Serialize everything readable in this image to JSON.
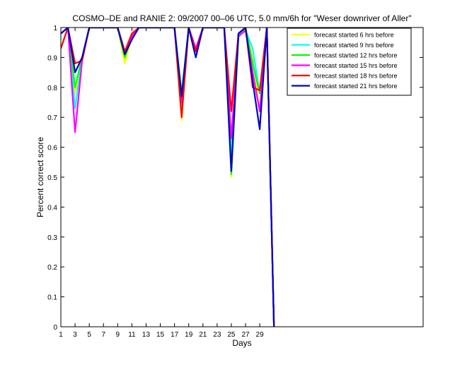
{
  "chart_data": {
    "type": "line",
    "title": "COSMO–DE and RANIE 2: 09/2007 00–06 UTC, 5.0 mm/6h for \"Weser downriver of Aller\"",
    "xlabel": "Days",
    "ylabel": "Percent correct score",
    "xlim": [
      1,
      52
    ],
    "ylim": [
      0,
      1
    ],
    "xticks": [
      1,
      3,
      5,
      7,
      9,
      11,
      13,
      15,
      17,
      19,
      21,
      23,
      25,
      27,
      29
    ],
    "yticks": [
      0,
      0.1,
      0.2,
      0.3,
      0.4,
      0.5,
      0.6,
      0.7,
      0.8,
      0.9,
      1
    ],
    "ytick_labels": [
      "0",
      "0.1",
      "0.2",
      "0.3",
      "0.4",
      "0.5",
      "0.6",
      "0.7",
      "0.8",
      "0.9",
      "1"
    ],
    "grid": false,
    "legend_position": "top-right",
    "x": [
      1,
      2,
      3,
      4,
      5,
      6,
      7,
      8,
      9,
      10,
      11,
      12,
      13,
      14,
      15,
      16,
      17,
      18,
      19,
      20,
      21,
      22,
      23,
      24,
      25,
      26,
      27,
      28,
      29,
      30,
      31
    ],
    "series": [
      {
        "name": "forecast started 6 hrs before",
        "color": "#ffff00",
        "values": [
          0.93,
          1,
          0.78,
          0.9,
          1,
          1,
          1,
          1,
          1,
          0.88,
          0.97,
          1,
          1,
          1,
          1,
          1,
          1,
          0.69,
          1,
          0.92,
          1,
          1,
          1,
          1,
          0.5,
          0.97,
          1,
          0.9,
          0.72,
          1,
          0
        ]
      },
      {
        "name": "forecast started 9 hrs before",
        "color": "#00ffff",
        "values": [
          0.98,
          1,
          0.73,
          0.9,
          1,
          1,
          1,
          1,
          1,
          0.91,
          0.97,
          1,
          1,
          1,
          1,
          1,
          1,
          0.74,
          1,
          0.92,
          1,
          1,
          1,
          1,
          0.58,
          0.97,
          0.99,
          0.93,
          0.78,
          1,
          0
        ]
      },
      {
        "name": "forecast started 12 hrs before",
        "color": "#00ff00",
        "values": [
          0.98,
          1,
          0.8,
          0.9,
          1,
          1,
          1,
          1,
          1,
          0.9,
          0.97,
          1,
          1,
          1,
          1,
          1,
          1,
          0.78,
          1,
          0.92,
          1,
          1,
          1,
          1,
          0.51,
          0.97,
          1,
          0.88,
          0.78,
          1,
          0
        ]
      },
      {
        "name": "forecast started 15 hrs before",
        "color": "#ff00ff",
        "values": [
          0.98,
          1,
          0.65,
          0.89,
          1,
          1,
          1,
          1,
          1,
          0.92,
          0.97,
          1,
          1,
          1,
          1,
          1,
          1,
          0.75,
          1,
          0.93,
          1,
          1,
          1,
          1,
          0.63,
          0.97,
          0.99,
          0.85,
          0.72,
          1,
          0
        ]
      },
      {
        "name": "forecast started 18 hrs before",
        "color": "#ff0000",
        "values": [
          0.93,
          1,
          0.88,
          0.89,
          1,
          1,
          1,
          1,
          1,
          0.92,
          0.98,
          1,
          1,
          1,
          1,
          1,
          1,
          0.7,
          1,
          0.92,
          1,
          1,
          1,
          1,
          0.72,
          0.98,
          1,
          0.8,
          0.79,
          1,
          0
        ]
      },
      {
        "name": "forecast started 21 hrs before",
        "color": "#0000cc",
        "values": [
          0.98,
          1,
          0.85,
          0.9,
          1,
          1,
          1,
          1,
          1,
          0.91,
          0.96,
          1,
          1,
          1,
          1,
          1,
          1,
          0.77,
          1,
          0.9,
          1,
          1,
          1,
          1,
          0.52,
          0.98,
          1,
          0.82,
          0.66,
          1,
          0
        ]
      }
    ]
  }
}
